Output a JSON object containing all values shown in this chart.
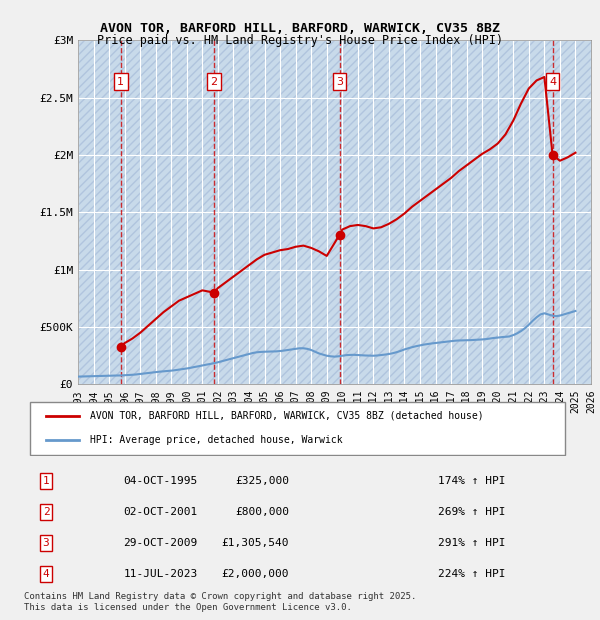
{
  "title": "AVON TOR, BARFORD HILL, BARFORD, WARWICK, CV35 8BZ",
  "subtitle": "Price paid vs. HM Land Registry's House Price Index (HPI)",
  "background_color": "#dce9f5",
  "hatch_color": "#b0c8e0",
  "plot_bg": "#dce9f5",
  "red_line_color": "#cc0000",
  "blue_line_color": "#6699cc",
  "grid_color": "#ffffff",
  "ylim": [
    0,
    3000000
  ],
  "yticks": [
    0,
    500000,
    1000000,
    1500000,
    2000000,
    2500000,
    3000000
  ],
  "ytick_labels": [
    "£0",
    "£500K",
    "£1M",
    "£1.5M",
    "£2M",
    "£2.5M",
    "£3M"
  ],
  "xlim_start": 1993,
  "xlim_end": 2026,
  "xticks": [
    1993,
    1994,
    1995,
    1996,
    1997,
    1998,
    1999,
    2000,
    2001,
    2002,
    2003,
    2004,
    2005,
    2006,
    2007,
    2008,
    2009,
    2010,
    2011,
    2012,
    2013,
    2014,
    2015,
    2016,
    2017,
    2018,
    2019,
    2020,
    2021,
    2022,
    2023,
    2024,
    2025,
    2026
  ],
  "transactions": [
    {
      "num": 1,
      "date": "04-OCT-1995",
      "year": 1995.75,
      "price": 325000,
      "pct": "174%",
      "dir": "↑"
    },
    {
      "num": 2,
      "date": "02-OCT-2001",
      "year": 2001.75,
      "price": 800000,
      "pct": "269%",
      "dir": "↑"
    },
    {
      "num": 3,
      "date": "29-OCT-2009",
      "year": 2009.83,
      "price": 1305540,
      "pct": "291%",
      "dir": "↑"
    },
    {
      "num": 4,
      "date": "11-JUL-2023",
      "year": 2023.53,
      "price": 2000000,
      "pct": "224%",
      "dir": "↑"
    }
  ],
  "hpi_years": [
    1993,
    1993.25,
    1993.5,
    1993.75,
    1994,
    1994.25,
    1994.5,
    1994.75,
    1995,
    1995.25,
    1995.5,
    1995.75,
    1996,
    1996.25,
    1996.5,
    1996.75,
    1997,
    1997.25,
    1997.5,
    1997.75,
    1998,
    1998.25,
    1998.5,
    1998.75,
    1999,
    1999.25,
    1999.5,
    1999.75,
    2000,
    2000.25,
    2000.5,
    2000.75,
    2001,
    2001.25,
    2001.5,
    2001.75,
    2002,
    2002.25,
    2002.5,
    2002.75,
    2003,
    2003.25,
    2003.5,
    2003.75,
    2004,
    2004.25,
    2004.5,
    2004.75,
    2005,
    2005.25,
    2005.5,
    2005.75,
    2006,
    2006.25,
    2006.5,
    2006.75,
    2007,
    2007.25,
    2007.5,
    2007.75,
    2008,
    2008.25,
    2008.5,
    2008.75,
    2009,
    2009.25,
    2009.5,
    2009.75,
    2010,
    2010.25,
    2010.5,
    2010.75,
    2011,
    2011.25,
    2011.5,
    2011.75,
    2012,
    2012.25,
    2012.5,
    2012.75,
    2013,
    2013.25,
    2013.5,
    2013.75,
    2014,
    2014.25,
    2014.5,
    2014.75,
    2015,
    2015.25,
    2015.5,
    2015.75,
    2016,
    2016.25,
    2016.5,
    2016.75,
    2017,
    2017.25,
    2017.5,
    2017.75,
    2018,
    2018.25,
    2018.5,
    2018.75,
    2019,
    2019.25,
    2019.5,
    2019.75,
    2020,
    2020.25,
    2020.5,
    2020.75,
    2021,
    2021.25,
    2021.5,
    2021.75,
    2022,
    2022.25,
    2022.5,
    2022.75,
    2023,
    2023.25,
    2023.5,
    2023.75,
    2024,
    2024.25,
    2024.5,
    2024.75,
    2025
  ],
  "hpi_values": [
    68000,
    69000,
    70000,
    71000,
    72000,
    73000,
    74000,
    75000,
    76000,
    77000,
    77500,
    78000,
    80000,
    82000,
    84000,
    87000,
    91000,
    95000,
    99000,
    103000,
    107000,
    111000,
    114000,
    117000,
    120000,
    124000,
    129000,
    134000,
    139000,
    145000,
    152000,
    158000,
    165000,
    172000,
    178000,
    185000,
    193000,
    202000,
    211000,
    220000,
    229000,
    238000,
    247000,
    256000,
    265000,
    274000,
    280000,
    283000,
    285000,
    286000,
    287000,
    288000,
    291000,
    295000,
    300000,
    305000,
    310000,
    315000,
    315000,
    310000,
    300000,
    285000,
    270000,
    260000,
    250000,
    245000,
    242000,
    245000,
    250000,
    255000,
    257000,
    258000,
    256000,
    254000,
    252000,
    251000,
    250000,
    252000,
    256000,
    260000,
    265000,
    272000,
    281000,
    292000,
    305000,
    315000,
    325000,
    333000,
    340000,
    347000,
    352000,
    357000,
    361000,
    365000,
    369000,
    373000,
    377000,
    381000,
    383000,
    384000,
    385000,
    386000,
    388000,
    390000,
    392000,
    395000,
    400000,
    405000,
    408000,
    412000,
    415000,
    418000,
    430000,
    445000,
    465000,
    490000,
    520000,
    555000,
    585000,
    610000,
    620000,
    610000,
    600000,
    595000,
    600000,
    610000,
    620000,
    630000,
    640000
  ],
  "property_years": [
    1993,
    1993.5,
    1994,
    1994.5,
    1995,
    1995.75,
    1996,
    1996.5,
    1997,
    1997.5,
    1998,
    1998.5,
    1999,
    1999.5,
    2000,
    2000.5,
    2001,
    2001.75,
    2002,
    2002.5,
    2003,
    2003.5,
    2004,
    2004.5,
    2005,
    2005.5,
    2006,
    2006.5,
    2007,
    2007.5,
    2008,
    2008.5,
    2009,
    2009.83,
    2010,
    2010.5,
    2011,
    2011.5,
    2012,
    2012.5,
    2013,
    2013.5,
    2014,
    2014.5,
    2015,
    2015.5,
    2016,
    2016.5,
    2017,
    2017.5,
    2018,
    2018.5,
    2019,
    2019.5,
    2020,
    2020.5,
    2021,
    2021.5,
    2022,
    2022.5,
    2023,
    2023.53,
    2024,
    2024.5,
    2025
  ],
  "property_values": [
    null,
    null,
    null,
    null,
    null,
    325000,
    360000,
    400000,
    450000,
    510000,
    570000,
    630000,
    680000,
    730000,
    760000,
    790000,
    820000,
    800000,
    840000,
    890000,
    940000,
    990000,
    1040000,
    1090000,
    1130000,
    1150000,
    1170000,
    1180000,
    1200000,
    1210000,
    1190000,
    1160000,
    1120000,
    1305540,
    1350000,
    1380000,
    1390000,
    1380000,
    1360000,
    1370000,
    1400000,
    1440000,
    1490000,
    1550000,
    1600000,
    1650000,
    1700000,
    1750000,
    1800000,
    1860000,
    1910000,
    1960000,
    2010000,
    2050000,
    2100000,
    2180000,
    2300000,
    2450000,
    2580000,
    2650000,
    2680000,
    2000000,
    1950000,
    1980000,
    2020000
  ],
  "legend_label_red": "AVON TOR, BARFORD HILL, BARFORD, WARWICK, CV35 8BZ (detached house)",
  "legend_label_blue": "HPI: Average price, detached house, Warwick",
  "footer": "Contains HM Land Registry data © Crown copyright and database right 2025.\nThis data is licensed under the Open Government Licence v3.0.",
  "table_rows": [
    [
      "1",
      "04-OCT-1995",
      "£325,000",
      "174% ↑ HPI"
    ],
    [
      "2",
      "02-OCT-2001",
      "£800,000",
      "269% ↑ HPI"
    ],
    [
      "3",
      "29-OCT-2009",
      "£1,305,540",
      "291% ↑ HPI"
    ],
    [
      "4",
      "11-JUL-2023",
      "£2,000,000",
      "224% ↑ HPI"
    ]
  ]
}
